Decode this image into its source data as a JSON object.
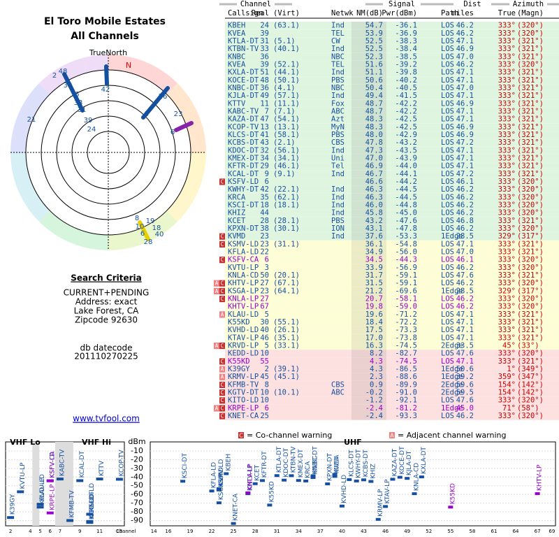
{
  "header": {
    "title": "El Toro Mobile Estates",
    "subtitle": "All Channels"
  },
  "polar": {
    "north_label": "TrueNorth",
    "magnetic_label": "N",
    "labels": [
      "42",
      "48",
      "2",
      "39",
      "36",
      "33",
      "31",
      "39",
      "24",
      "21",
      "5",
      "26",
      "23",
      "6",
      "8",
      "19",
      "10",
      "18",
      "40",
      "6",
      "28"
    ]
  },
  "criteria": {
    "heading": "Search Criteria",
    "lines": [
      "CURRENT+PENDING",
      "Address: exact",
      "Lake Forest, CA",
      "Zipcode 92630"
    ],
    "datecode_label": "db datecode",
    "datecode": "201110270225",
    "link": "www.tvfool.com"
  },
  "table": {
    "groups": [
      "Channel",
      "Signal",
      "Dist",
      "Azimuth"
    ],
    "columns": [
      "Callsign",
      "Real",
      "(Virt)",
      "Netwk",
      "NM(dB)",
      "Pwr(dBm)",
      "Path",
      "miles",
      "True",
      "(Magn)"
    ],
    "rows": [
      {
        "callsign": "KBEH",
        "real": "24",
        "virt": "(63.1)",
        "netwk": "Ind",
        "nm": "54.7",
        "pwr": "-36.1",
        "path": "LOS",
        "dist": "46.2",
        "true": "333°",
        "magn": "(320°)"
      },
      {
        "callsign": "KVEA",
        "real": "39",
        "netwk": "TEL",
        "nm": "53.9",
        "pwr": "-36.9",
        "path": "LOS",
        "dist": "46.2",
        "true": "333°",
        "magn": "(320°)"
      },
      {
        "callsign": "KTLA-DT",
        "real": "31",
        "virt": "(5.1)",
        "netwk": "CW",
        "nm": "52.5",
        "pwr": "-38.3",
        "path": "LOS",
        "dist": "47.1",
        "true": "333°",
        "magn": "(321°)"
      },
      {
        "callsign": "KTBN-TV",
        "real": "33",
        "virt": "(40.1)",
        "netwk": "Ind",
        "nm": "52.5",
        "pwr": "-38.4",
        "path": "LOS",
        "dist": "46.9",
        "true": "333°",
        "magn": "(321°)"
      },
      {
        "callsign": "KNBC",
        "real": "36",
        "netwk": "NBC",
        "nm": "52.3",
        "pwr": "-38.5",
        "path": "LOS",
        "dist": "47.0",
        "true": "333°",
        "magn": "(321°)"
      },
      {
        "callsign": "KVEA",
        "real": "39",
        "virt": "(52.1)",
        "netwk": "TEL",
        "nm": "51.6",
        "pwr": "-39.2",
        "path": "LOS",
        "dist": "46.2",
        "true": "333°",
        "magn": "(320°)"
      },
      {
        "callsign": "KXLA-DT",
        "real": "51",
        "virt": "(44.1)",
        "netwk": "Ind",
        "nm": "51.1",
        "pwr": "-39.8",
        "path": "LOS",
        "dist": "47.1",
        "true": "333°",
        "magn": "(321°)"
      },
      {
        "callsign": "KOCE-DT",
        "real": "48",
        "virt": "(50.1)",
        "netwk": "PBS",
        "nm": "50.6",
        "pwr": "-40.2",
        "path": "LOS",
        "dist": "47.1",
        "true": "333°",
        "magn": "(321°)"
      },
      {
        "callsign": "KNBC-DT",
        "real": "36",
        "virt": "(4.1)",
        "netwk": "NBC",
        "nm": "50.4",
        "pwr": "-40.5",
        "path": "LOS",
        "dist": "47.0",
        "true": "333°",
        "magn": "(321°)"
      },
      {
        "callsign": "KJLA-DT",
        "real": "49",
        "virt": "(57.1)",
        "netwk": "Ind",
        "nm": "49.4",
        "pwr": "-41.5",
        "path": "LOS",
        "dist": "47.1",
        "true": "333°",
        "magn": "(321°)"
      },
      {
        "callsign": "KTTV",
        "real": "11",
        "virt": "(11.1)",
        "netwk": "Fox",
        "nm": "48.7",
        "pwr": "-42.2",
        "path": "LOS",
        "dist": "46.9",
        "true": "333°",
        "magn": "(321°)"
      },
      {
        "callsign": "KABC-TV",
        "real": "7",
        "virt": "(7.1)",
        "netwk": "ABC",
        "nm": "48.7",
        "pwr": "-42.2",
        "path": "LOS",
        "dist": "47.1",
        "true": "333°",
        "magn": "(321°)"
      },
      {
        "callsign": "KAZA-DT",
        "real": "47",
        "virt": "(54.1)",
        "netwk": "Azt",
        "nm": "48.3",
        "pwr": "-42.5",
        "path": "LOS",
        "dist": "47.1",
        "true": "333°",
        "magn": "(321°)"
      },
      {
        "callsign": "KCOP-TV",
        "real": "13",
        "virt": "(13.1)",
        "netwk": "MyN",
        "nm": "48.3",
        "pwr": "-42.5",
        "path": "LOS",
        "dist": "46.9",
        "true": "333°",
        "magn": "(321°)"
      },
      {
        "callsign": "KLCS-DT",
        "real": "41",
        "virt": "(58.1)",
        "netwk": "PBS",
        "nm": "48.0",
        "pwr": "-42.9",
        "path": "LOS",
        "dist": "46.9",
        "true": "333°",
        "magn": "(321°)"
      },
      {
        "callsign": "KCBS-DT",
        "real": "43",
        "virt": "(2.1)",
        "netwk": "CBS",
        "nm": "47.8",
        "pwr": "-43.2",
        "path": "LOS",
        "dist": "47.2",
        "true": "333°",
        "magn": "(321°)"
      },
      {
        "callsign": "KDOC-DT",
        "real": "32",
        "virt": "(56.1)",
        "netwk": "Ind",
        "nm": "47.3",
        "pwr": "-43.5",
        "path": "LOS",
        "dist": "47.1",
        "true": "333°",
        "magn": "(321°)"
      },
      {
        "callsign": "KMEX-DT",
        "real": "34",
        "virt": "(34.1)",
        "netwk": "Uni",
        "nm": "47.0",
        "pwr": "-43.9",
        "path": "LOS",
        "dist": "47.1",
        "true": "333°",
        "magn": "(321°)"
      },
      {
        "callsign": "KFTR-DT",
        "real": "29",
        "virt": "(46.1)",
        "netwk": "Tel",
        "nm": "46.9",
        "pwr": "-44.0",
        "path": "LOS",
        "dist": "47.1",
        "true": "333°",
        "magn": "(321°)"
      },
      {
        "callsign": "KCAL-DT",
        "real": "9",
        "virt": "(9.1)",
        "netwk": "Ind",
        "nm": "46.7",
        "pwr": "-44.1",
        "path": "LOS",
        "dist": "47.2",
        "true": "333°",
        "magn": "(321°)"
      },
      {
        "callsign": "KSFV-LD",
        "real": "6",
        "nm": "46.6",
        "pwr": "-44.2",
        "path": "LOS",
        "dist": "46.1",
        "true": "333°",
        "magn": "(320°)",
        "warn": [
          "C"
        ]
      },
      {
        "callsign": "KWHY-DT",
        "real": "42",
        "virt": "(22.1)",
        "netwk": "Ind",
        "nm": "46.3",
        "pwr": "-44.5",
        "path": "LOS",
        "dist": "46.2",
        "true": "333°",
        "magn": "(320°)"
      },
      {
        "callsign": "KRCA",
        "real": "35",
        "virt": "(62.1)",
        "netwk": "Ind",
        "nm": "46.3",
        "pwr": "-44.5",
        "path": "LOS",
        "dist": "46.2",
        "true": "333°",
        "magn": "(320°)"
      },
      {
        "callsign": "KSCI-DT",
        "real": "18",
        "virt": "(18.1)",
        "netwk": "Ind",
        "nm": "46.0",
        "pwr": "-44.8",
        "path": "LOS",
        "dist": "46.2",
        "true": "333°",
        "magn": "(320°)"
      },
      {
        "callsign": "KHIZ",
        "real": "44",
        "netwk": "Ind",
        "nm": "45.8",
        "pwr": "-45.0",
        "path": "LOS",
        "dist": "46.2",
        "true": "333°",
        "magn": "(320°)"
      },
      {
        "callsign": "KCET",
        "real": "28",
        "virt": "(28.1)",
        "netwk": "PBS",
        "nm": "43.2",
        "pwr": "-47.6",
        "path": "LOS",
        "dist": "46.8",
        "true": "333°",
        "magn": "(321°)"
      },
      {
        "callsign": "KPXN-DT",
        "real": "38",
        "virt": "(30.1)",
        "netwk": "ION",
        "nm": "43.1",
        "pwr": "-47.8",
        "path": "LOS",
        "dist": "46.2",
        "true": "333°",
        "magn": "(320°)"
      },
      {
        "callsign": "KVMD",
        "real": "23",
        "netwk": "Ind",
        "nm": "37.6",
        "pwr": "-53.3",
        "path": "1Edge",
        "dist": "28.5",
        "true": "329°",
        "magn": "(317°)",
        "warn": [
          "C"
        ]
      },
      {
        "callsign": "KSMV-LD",
        "real": "23",
        "virt": "(31.1)",
        "nm": "36.1",
        "pwr": "-54.8",
        "path": "LOS",
        "dist": "47.1",
        "true": "333°",
        "magn": "(321°)",
        "warn": [
          "C"
        ]
      },
      {
        "callsign": "KFLA-LD",
        "real": "22",
        "nm": "34.9",
        "pwr": "-56.0",
        "path": "LOS",
        "dist": "47.0",
        "true": "333°",
        "magn": "(321°)"
      },
      {
        "callsign": "KSFV-CA",
        "real": "6",
        "nm": "34.5",
        "pwr": "-44.3",
        "path": "LOS",
        "dist": "46.1",
        "true": "333°",
        "magn": "(320°)",
        "warn": [
          "C"
        ],
        "color": "#9900cc"
      },
      {
        "callsign": "KVTU-LP",
        "real": "3",
        "nm": "33.9",
        "pwr": "-56.9",
        "path": "LOS",
        "dist": "46.2",
        "true": "333°",
        "magn": "(320°)"
      },
      {
        "callsign": "KNLA-CD",
        "real": "50",
        "virt": "(20.1)",
        "nm": "31.7",
        "pwr": "-59.1",
        "path": "LOS",
        "dist": "47.6",
        "true": "333°",
        "magn": "(321°)"
      },
      {
        "callsign": "KHTV-LP",
        "real": "27",
        "virt": "(67.1)",
        "nm": "31.5",
        "pwr": "-59.1",
        "path": "LOS",
        "dist": "46.2",
        "true": "333°",
        "magn": "(320°)",
        "warn": [
          "A",
          "C"
        ]
      },
      {
        "callsign": "KSGA-LP",
        "real": "23",
        "virt": "(64.1)",
        "nm": "21.2",
        "pwr": "-69.6",
        "path": "1Edge",
        "dist": "28.5",
        "true": "329°",
        "magn": "(317°)",
        "warn": [
          "A",
          "C"
        ]
      },
      {
        "callsign": "KNLA-LP",
        "real": "27",
        "nm": "20.7",
        "pwr": "-58.1",
        "path": "LOS",
        "dist": "46.2",
        "true": "333°",
        "magn": "(320°)",
        "warn": [
          "C"
        ],
        "color": "#9900cc"
      },
      {
        "callsign": "KHTV-LP",
        "real": "67",
        "nm": "19.8",
        "pwr": "-59.0",
        "path": "LOS",
        "dist": "46.2",
        "true": "333°",
        "magn": "(320°)",
        "color": "#9900cc"
      },
      {
        "callsign": "KLAU-LD",
        "real": "5",
        "nm": "19.6",
        "pwr": "-71.2",
        "path": "LOS",
        "dist": "47.1",
        "true": "333°",
        "magn": "(321°)",
        "warn": [
          "A"
        ]
      },
      {
        "callsign": "K55KD",
        "real": "30",
        "virt": "(55.1)",
        "nm": "18.4",
        "pwr": "-72.2",
        "path": "LOS",
        "dist": "47.1",
        "true": "333°",
        "magn": "(321°)"
      },
      {
        "callsign": "KVHD-LD",
        "real": "40",
        "virt": "(26.1)",
        "nm": "17.5",
        "pwr": "-73.3",
        "path": "LOS",
        "dist": "47.1",
        "true": "333°",
        "magn": "(321°)"
      },
      {
        "callsign": "KTAV-LP",
        "real": "46",
        "virt": "(35.1)",
        "nm": "17.0",
        "pwr": "-73.8",
        "path": "LOS",
        "dist": "47.1",
        "true": "333°",
        "magn": "(321°)"
      },
      {
        "callsign": "KRVD-LP",
        "real": "5",
        "virt": "(33.1)",
        "nm": "16.3",
        "pwr": "-74.5",
        "path": "2Edge",
        "dist": "33.5",
        "true": "45°",
        "magn": "(33°)",
        "warn": [
          "A",
          "C"
        ]
      },
      {
        "callsign": "KEDD-LD",
        "real": "10",
        "nm": "8.2",
        "pwr": "-82.7",
        "path": "LOS",
        "dist": "47.6",
        "true": "333°",
        "magn": "(320°)"
      },
      {
        "callsign": "K55KD",
        "real": "55",
        "nm": "4.3",
        "pwr": "-74.5",
        "path": "LOS",
        "dist": "47.1",
        "true": "333°",
        "magn": "(321°)",
        "warn": [
          "C"
        ],
        "color": "#9900cc"
      },
      {
        "callsign": "K39GY",
        "real": "2",
        "virt": "(39.1)",
        "nm": "4.3",
        "pwr": "-86.5",
        "path": "1Edge",
        "dist": "50.6",
        "true": "1°",
        "magn": "(349°)",
        "warn": [
          "A"
        ]
      },
      {
        "callsign": "KRMV-LP",
        "real": "45",
        "virt": "(45.1)",
        "nm": "2.3",
        "pwr": "-88.6",
        "path": "1Edge",
        "dist": "39.2",
        "true": "359°",
        "magn": "(347°)",
        "warn": [
          "A"
        ]
      },
      {
        "callsign": "KFMB-TV",
        "real": "8",
        "netwk": "CBS",
        "nm": "0.9",
        "pwr": "-89.9",
        "path": "2Edge",
        "dist": "59.6",
        "true": "154°",
        "magn": "(142°)",
        "warn": [
          "C"
        ]
      },
      {
        "callsign": "KGTV-DT",
        "real": "10",
        "virt": "(10.1)",
        "netwk": "ABC",
        "nm": "-0.2",
        "pwr": "-91.0",
        "path": "2Edge",
        "dist": "59.5",
        "true": "154°",
        "magn": "(142°)",
        "warn": [
          "C"
        ]
      },
      {
        "callsign": "KITO-LD",
        "real": "10",
        "nm": "-1.2",
        "pwr": "-92.1",
        "path": "LOS",
        "dist": "47.6",
        "true": "333°",
        "magn": "(320°)",
        "warn": [
          "C"
        ]
      },
      {
        "callsign": "KRPE-LP",
        "real": "6",
        "nm": "-2.4",
        "pwr": "-81.2",
        "path": "1Edge",
        "dist": "45.0",
        "true": "71°",
        "magn": "(58°)",
        "warn": [
          "A",
          "C"
        ],
        "color": "#9900cc"
      },
      {
        "callsign": "KNET-CA",
        "real": "25",
        "nm": "-2.4",
        "pwr": "-93.3",
        "path": "LOS",
        "dist": "46.2",
        "true": "333°",
        "magn": "(320°)",
        "warn": [
          "C"
        ]
      }
    ]
  },
  "spectrum": {
    "vhf_lo": "VHF Lo",
    "vhf_hi": "VHF Hi",
    "uhf": "UHF",
    "y_label": "dBm",
    "x_label": "Channel",
    "co_marker": "C",
    "co_label": "= Co-channel warning",
    "adj_marker": "A",
    "adj_label": "= Adjacent channel warning",
    "ylim": [
      -96,
      -2
    ],
    "yticks": [
      -10,
      -20,
      -30,
      -40,
      -50,
      -60,
      -70,
      -80,
      -90
    ],
    "vhf_xlim": [
      1.5,
      13.5
    ],
    "vhf_xticks": [
      2,
      4,
      5,
      6,
      7,
      9,
      11,
      13
    ],
    "uhf_xlim": [
      13.5,
      69.5
    ],
    "uhf_xticks": [
      14,
      16,
      19,
      22,
      25,
      28,
      31,
      34,
      37,
      40,
      43,
      46,
      49,
      52,
      55,
      58,
      61,
      64,
      67,
      69
    ]
  }
}
